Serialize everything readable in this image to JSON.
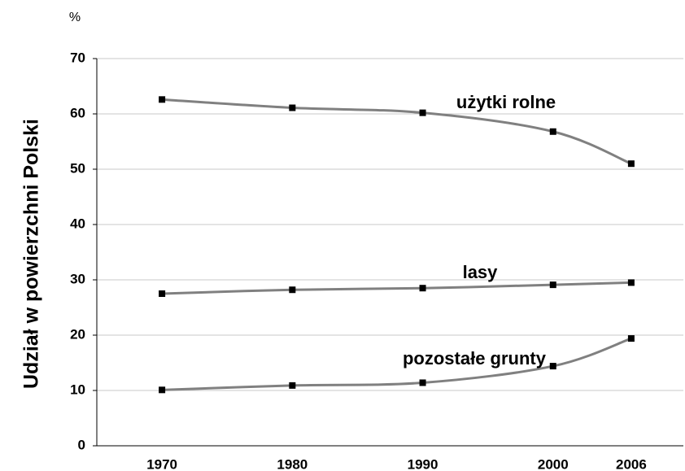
{
  "chart_data": {
    "type": "line",
    "y_label": "Udział w powierzchni Polski",
    "y_unit": "%",
    "x": [
      1970,
      1980,
      1990,
      2000,
      2006
    ],
    "xlim": [
      1965,
      2010
    ],
    "xticks": [
      1970,
      1980,
      1990,
      2000,
      2006
    ],
    "ylim": [
      0,
      70
    ],
    "yticks": [
      0,
      10,
      20,
      30,
      40,
      50,
      60,
      70
    ],
    "grid": true,
    "series": [
      {
        "name": "użytki rolne",
        "color": "#808080",
        "values": [
          62.6,
          61.1,
          60.2,
          56.8,
          51.0
        ]
      },
      {
        "name": "lasy",
        "color": "#808080",
        "values": [
          27.5,
          28.2,
          28.5,
          29.1,
          29.5
        ]
      },
      {
        "name": "pozostałe grunty",
        "color": "#808080",
        "values": [
          10.1,
          10.9,
          11.4,
          14.4,
          19.4
        ]
      }
    ]
  }
}
